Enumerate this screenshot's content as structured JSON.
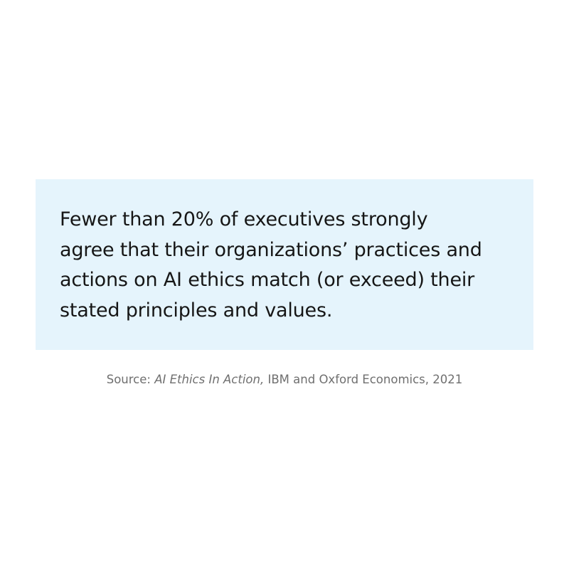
{
  "quote": {
    "lines": [
      "Fewer than 20% of executives strongly",
      "agree that their organizations’ practices and",
      "actions on AI ethics match (or exceed) their",
      "stated principles and values."
    ]
  },
  "source": {
    "prefix": "Source:",
    "title": "AI Ethics In Action,",
    "rest": "IBM and Oxford Economics, 2021"
  }
}
